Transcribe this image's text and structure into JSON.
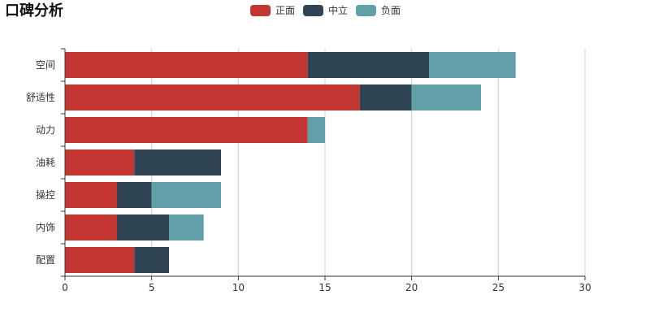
{
  "title": "口碑分析",
  "chart_data": {
    "type": "bar",
    "orientation": "horizontal",
    "stacked": true,
    "categories": [
      "空间",
      "舒适性",
      "动力",
      "油耗",
      "操控",
      "内饰",
      "配置"
    ],
    "series": [
      {
        "name": "正面",
        "color": "#c23531",
        "values": [
          14,
          17,
          14,
          4,
          3,
          3,
          4
        ]
      },
      {
        "name": "中立",
        "color": "#2f4554",
        "values": [
          7,
          3,
          0,
          5,
          2,
          3,
          2
        ]
      },
      {
        "name": "负面",
        "color": "#61a0a8",
        "values": [
          5,
          4,
          1,
          0,
          4,
          2,
          0
        ]
      }
    ],
    "xlim": [
      0,
      30
    ],
    "xticks": [
      "0",
      "5",
      "10",
      "15",
      "20",
      "25",
      "30"
    ],
    "grid": true,
    "legend_position": "top-center"
  }
}
